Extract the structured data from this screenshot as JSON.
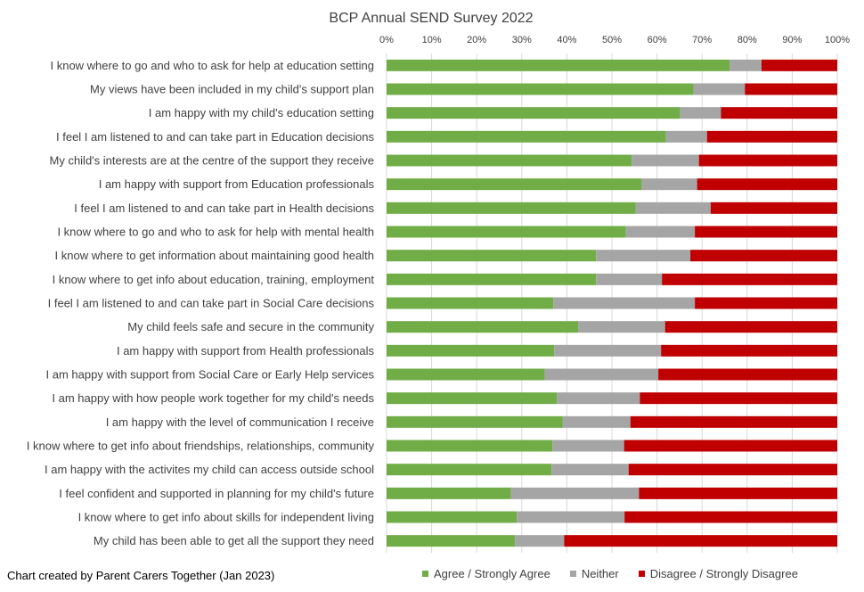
{
  "chart_data": {
    "type": "bar",
    "orientation": "horizontal",
    "stacked": "percent",
    "title": "BCP Annual SEND Survey 2022",
    "xlabel": "",
    "ylabel": "",
    "xlim": [
      0,
      100
    ],
    "x_ticks": [
      "0%",
      "10%",
      "20%",
      "30%",
      "40%",
      "50%",
      "60%",
      "70%",
      "80%",
      "90%",
      "100%"
    ],
    "legend_position": "bottom",
    "grid": true,
    "categories": [
      "I know where to go and who to ask for help at education setting",
      "My views have been included in my child's support plan",
      "I am happy with my child's education setting",
      "I feel I am listened to and can take part in Education decisions",
      "My child's interests are at the centre of the support they receive",
      "I am happy with support from Education professionals",
      "I feel I am listened to and can take part in Health decisions",
      "I know where to go and who to ask for help with mental health",
      "I know where to get information about maintaining good health",
      "I know where to get info about education, training, employment",
      "I feel I am listened to and can take part in Social Care decisions",
      "My child feels safe and secure in the community",
      "I am happy with support from Health professionals",
      "I am happy with support from Social Care or Early Help services",
      "I am happy with how people work together for my child's needs",
      "I am happy with the level of communication I receive",
      "I know where to get info about friendships, relationships, community",
      "I am happy with the activites my child can access outside school",
      "I feel confident and supported in planning for my child's future",
      "I know where to get info about skills for independent living",
      "My child has been able to get all the support they need"
    ],
    "series": [
      {
        "name": "Agree / Strongly Agree",
        "color": "#70ad47",
        "values": [
          76.1,
          68.1,
          65.1,
          62.0,
          54.4,
          56.6,
          55.3,
          53.1,
          46.5,
          46.5,
          37.0,
          42.5,
          37.2,
          35.1,
          37.8,
          39.1,
          36.8,
          36.6,
          27.6,
          28.9,
          28.5
        ]
      },
      {
        "name": "Neither",
        "color": "#a5a5a5",
        "values": [
          7.1,
          11.4,
          9.1,
          9.1,
          14.9,
          12.3,
          16.6,
          15.3,
          20.9,
          14.6,
          31.4,
          19.3,
          23.7,
          25.2,
          18.4,
          15.0,
          15.9,
          17.1,
          28.4,
          23.9,
          10.9
        ]
      },
      {
        "name": "Disagree / Strongly Disagree",
        "color": "#c00000",
        "values": [
          16.8,
          20.5,
          25.8,
          28.9,
          30.7,
          31.1,
          28.1,
          31.6,
          32.6,
          38.9,
          31.6,
          38.2,
          39.1,
          39.7,
          43.8,
          45.9,
          47.3,
          46.3,
          44.0,
          47.2,
          60.6
        ]
      }
    ]
  },
  "footer": {
    "credit": "Chart created by Parent Carers Together (Jan 2023)"
  }
}
